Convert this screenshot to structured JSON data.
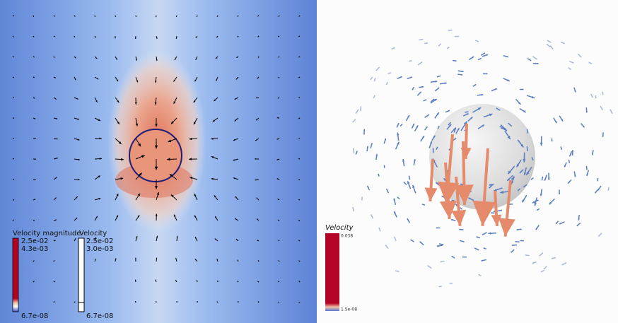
{
  "left_panel": {
    "legends": [
      {
        "title": "Velocity magnitude",
        "labels": [
          "2.5e-02",
          "4.3e-03",
          "6.7e-08"
        ]
      },
      {
        "title": "Velocity",
        "labels": [
          "2.5e-02",
          "3.0e-03",
          "6.7e-08"
        ]
      }
    ]
  },
  "right_panel": {
    "legend": {
      "title": "Velocity",
      "labels": [
        "0.038",
        "1.5e-08"
      ]
    }
  }
}
